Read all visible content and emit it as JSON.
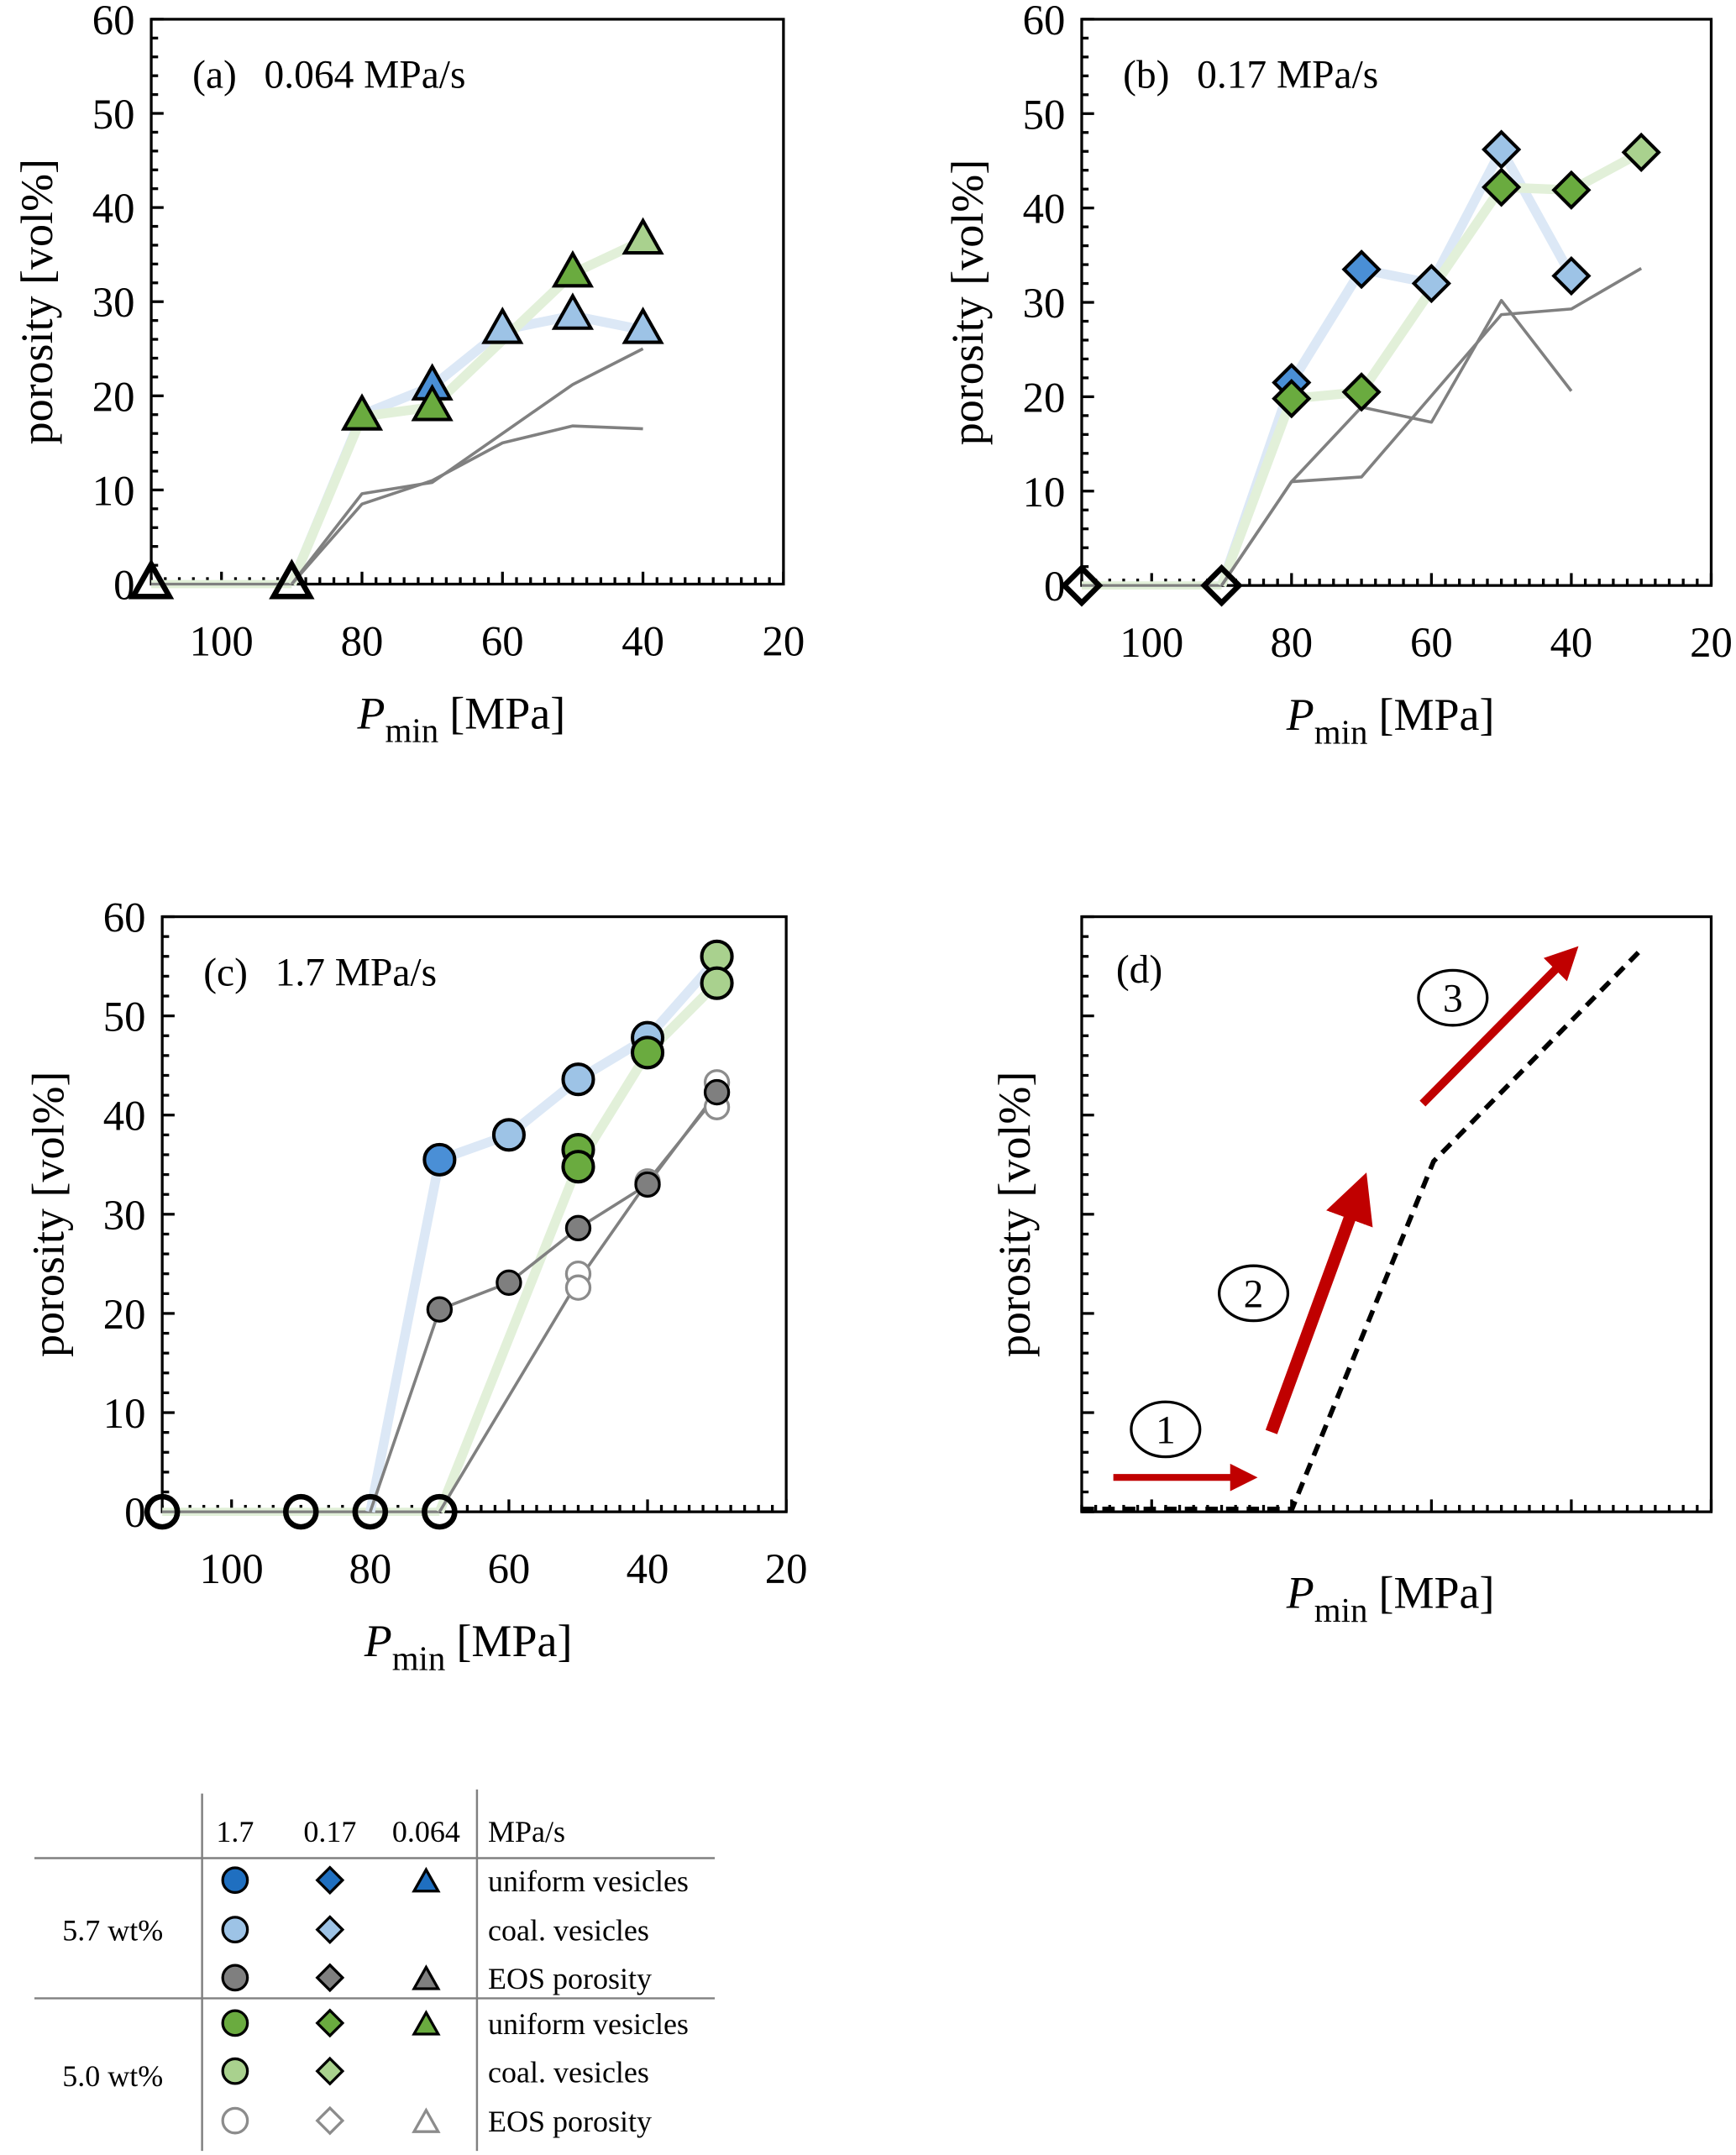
{
  "colors": {
    "uniform_5_7": "#4a8fd6",
    "uniform_5_7_legend": "#1f6fc0",
    "coal_5_7": "#9dc3e6",
    "eos_5_7": "#7f7f7f",
    "uniform_5_0": "#6aab3f",
    "coal_5_0": "#a9d18e",
    "eos_5_0": "#ffffff",
    "line_blue": "#dce8f6",
    "line_green": "#e2f0d9",
    "line_gray": "#808080",
    "arrow_red": "#c00000"
  },
  "chart_data": [
    {
      "type": "scatter",
      "panel": "(a)",
      "title": "0.064 MPa/s",
      "marker": "triangle",
      "xlabel": "P",
      "xlabel_sub": "min",
      "xlabel_unit": "[MPa]",
      "ylabel": "porosity [vol%]",
      "xlim": [
        110,
        20
      ],
      "ylim": [
        0,
        60
      ],
      "xticks": [
        "100",
        "80",
        "60",
        "40",
        "20"
      ],
      "yticks": [
        "0",
        "10",
        "20",
        "30",
        "40",
        "50",
        "60"
      ],
      "zero_points": [
        110,
        90
      ],
      "series": [
        {
          "key": "coal_5_7_line",
          "style": "thick-blue",
          "x": [
            90,
            80,
            70,
            60,
            50,
            40
          ],
          "y": [
            0,
            18,
            21,
            27,
            28.5,
            27
          ]
        },
        {
          "key": "green_line",
          "style": "thick-green",
          "x": [
            90,
            80,
            70,
            50,
            40
          ],
          "y": [
            0,
            17.8,
            18.8,
            33,
            36.5
          ]
        },
        {
          "key": "eos_5_0",
          "style": "thin",
          "x": [
            90,
            80,
            70,
            60,
            50,
            40
          ],
          "y": [
            0,
            8.5,
            11,
            15,
            16.8,
            16.5
          ]
        },
        {
          "key": "eos_5_7",
          "style": "thin",
          "x": [
            90,
            80,
            70,
            50,
            40
          ],
          "y": [
            0,
            9.6,
            10.8,
            21.2,
            25
          ]
        },
        {
          "key": "uniform_5_7",
          "x": [
            70
          ],
          "y": [
            21
          ]
        },
        {
          "key": "coal_5_7",
          "x": [
            60,
            50,
            40
          ],
          "y": [
            27,
            28.5,
            27
          ]
        },
        {
          "key": "uniform_5_0",
          "x": [
            80,
            70,
            50
          ],
          "y": [
            17.8,
            18.8,
            33
          ]
        },
        {
          "key": "coal_5_0",
          "x": [
            40
          ],
          "y": [
            36.5
          ]
        }
      ]
    },
    {
      "type": "scatter",
      "panel": "(b)",
      "title": "0.17 MPa/s",
      "marker": "diamond",
      "xlabel": "P",
      "xlabel_sub": "min",
      "xlabel_unit": "[MPa]",
      "ylabel": "porosity [vol%]",
      "xlim": [
        110,
        20
      ],
      "ylim": [
        0,
        60
      ],
      "xticks": [
        "100",
        "80",
        "60",
        "40",
        "20"
      ],
      "yticks": [
        "0",
        "10",
        "20",
        "30",
        "40",
        "50",
        "60"
      ],
      "zero_points": [
        110,
        90
      ],
      "series": [
        {
          "key": "coal_5_7_line",
          "style": "thick-blue",
          "x": [
            90,
            80,
            70,
            60,
            50,
            40
          ],
          "y": [
            0,
            21.5,
            33.5,
            32,
            46.2,
            32.8
          ]
        },
        {
          "key": "green_line",
          "style": "thick-green",
          "x": [
            90,
            80,
            70,
            50,
            40,
            30
          ],
          "y": [
            0,
            19.8,
            20.5,
            42.2,
            41.9,
            45.9
          ]
        },
        {
          "key": "eos_5_0",
          "style": "thin",
          "x": [
            90,
            80,
            70,
            50,
            40,
            30
          ],
          "y": [
            0,
            11,
            11.5,
            28.7,
            29.3,
            33.6
          ]
        },
        {
          "key": "eos_5_7",
          "style": "thin",
          "x": [
            90,
            80,
            70,
            60,
            50,
            40
          ],
          "y": [
            0,
            11,
            18.9,
            17.3,
            30.2,
            20.6
          ]
        },
        {
          "key": "uniform_5_7",
          "x": [
            80,
            70
          ],
          "y": [
            21.5,
            33.5
          ]
        },
        {
          "key": "coal_5_7",
          "x": [
            60,
            50,
            40
          ],
          "y": [
            32,
            46.2,
            32.8
          ]
        },
        {
          "key": "uniform_5_0",
          "x": [
            80,
            70,
            50,
            40
          ],
          "y": [
            19.8,
            20.5,
            42.2,
            41.9
          ]
        },
        {
          "key": "coal_5_0",
          "x": [
            30
          ],
          "y": [
            45.9
          ]
        }
      ]
    },
    {
      "type": "scatter",
      "panel": "(c)",
      "title": "1.7 MPa/s",
      "marker": "circle",
      "xlabel": "P",
      "xlabel_sub": "min",
      "xlabel_unit": "[MPa]",
      "ylabel": "porosity [vol%]",
      "xlim": [
        110,
        20
      ],
      "ylim": [
        0,
        60
      ],
      "xticks": [
        "100",
        "80",
        "60",
        "40",
        "20"
      ],
      "yticks": [
        "0",
        "10",
        "20",
        "30",
        "40",
        "50",
        "60"
      ],
      "zero_points": [
        110,
        90,
        80,
        70
      ],
      "series": [
        {
          "key": "coal_5_7_line",
          "style": "thick-blue",
          "x": [
            80,
            70,
            60,
            50,
            40,
            30
          ],
          "y": [
            0,
            35.5,
            38,
            43.6,
            47.8,
            55.7
          ]
        },
        {
          "key": "green_line",
          "style": "thick-green",
          "x": [
            70,
            50,
            40,
            30
          ],
          "y": [
            0,
            35,
            46.3,
            53.3
          ]
        },
        {
          "key": "eos_5_0",
          "style": "thin",
          "x": [
            70,
            50,
            40,
            30
          ],
          "y": [
            0,
            23.3,
            33.3,
            42
          ]
        },
        {
          "key": "eos_5_7",
          "style": "thin",
          "x": [
            80,
            70,
            60,
            50,
            40,
            30
          ],
          "y": [
            0,
            20.4,
            23.1,
            28.6,
            33,
            42.3
          ]
        },
        {
          "key": "eos_5_0",
          "x": [
            50,
            50,
            40,
            30,
            30
          ],
          "y": [
            24,
            22.6,
            33.3,
            43.3,
            40.8
          ]
        },
        {
          "key": "eos_5_7",
          "x": [
            70,
            60,
            50,
            40,
            30
          ],
          "y": [
            20.4,
            23.1,
            28.6,
            33,
            42.3
          ]
        },
        {
          "key": "uniform_5_7",
          "x": [
            70
          ],
          "y": [
            35.5
          ]
        },
        {
          "key": "coal_5_7",
          "x": [
            60,
            50,
            40
          ],
          "y": [
            38,
            43.6,
            47.8
          ]
        },
        {
          "key": "uniform_5_0",
          "x": [
            50,
            50,
            40
          ],
          "y": [
            36.5,
            34.8,
            46.3
          ]
        },
        {
          "key": "coal_5_0",
          "x": [
            30,
            30
          ],
          "y": [
            56,
            53.3
          ]
        }
      ]
    },
    {
      "type": "line",
      "panel": "(d)",
      "xlabel": "P",
      "xlabel_sub": "min",
      "xlabel_unit": "[MPa]",
      "ylabel": "porosity [vol%]",
      "stages": [
        "1",
        "2",
        "3"
      ]
    }
  ],
  "legend": {
    "header": [
      "1.7",
      "0.17",
      "0.064",
      "MPa/s"
    ],
    "groups": [
      "5.7 wt%",
      "5.0 wt%"
    ],
    "rows": [
      {
        "label": "uniform vesicles",
        "key": "uniform_5_7_legend",
        "markers": [
          "circle",
          "diamond",
          "triangle"
        ]
      },
      {
        "label": "coal. vesicles",
        "key": "coal_5_7",
        "markers": [
          "circle",
          "diamond"
        ]
      },
      {
        "label": "EOS porosity",
        "key": "eos_5_7",
        "markers": [
          "circle",
          "diamond",
          "triangle"
        ]
      },
      {
        "label": "uniform vesicles",
        "key": "uniform_5_0",
        "markers": [
          "circle",
          "diamond",
          "triangle"
        ]
      },
      {
        "label": "coal. vesicles",
        "key": "coal_5_0",
        "markers": [
          "circle",
          "diamond"
        ]
      },
      {
        "label": "EOS porosity",
        "key": "eos_5_0",
        "markers": [
          "circle",
          "diamond",
          "triangle"
        ]
      }
    ]
  }
}
